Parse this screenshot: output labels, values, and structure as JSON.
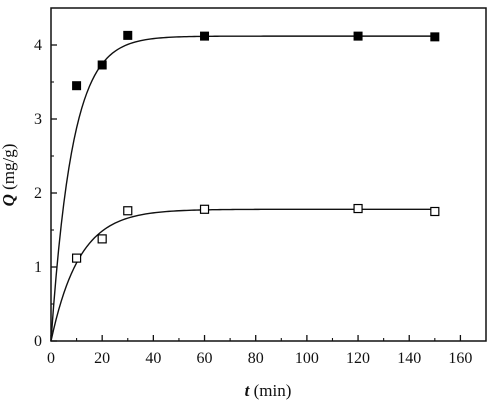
{
  "chart_data": {
    "type": "scatter",
    "xlabel_symbol": "t",
    "xlabel_unit": " (min)",
    "ylabel_symbol": "Q",
    "ylabel_unit": " (mg/g)",
    "xlim": [
      0,
      170
    ],
    "ylim": [
      0,
      4.5
    ],
    "xticks": [
      0,
      20,
      40,
      60,
      80,
      100,
      120,
      140,
      160
    ],
    "yticks": [
      0,
      1,
      2,
      3,
      4
    ],
    "grid": false,
    "series": [
      {
        "marker": "filled-square",
        "color": "#000000",
        "points": [
          [
            0,
            0
          ],
          [
            10,
            3.45
          ],
          [
            20,
            3.73
          ],
          [
            30,
            4.13
          ],
          [
            60,
            4.12
          ],
          [
            120,
            4.12
          ],
          [
            150,
            4.11
          ]
        ],
        "fit": {
          "qe": 4.12,
          "k": 0.12
        }
      },
      {
        "marker": "open-square",
        "color": "#000000",
        "points": [
          [
            0,
            0
          ],
          [
            10,
            1.12
          ],
          [
            20,
            1.38
          ],
          [
            30,
            1.76
          ],
          [
            60,
            1.78
          ],
          [
            120,
            1.79
          ],
          [
            150,
            1.75
          ]
        ],
        "fit": {
          "qe": 1.78,
          "k": 0.09
        }
      }
    ]
  }
}
